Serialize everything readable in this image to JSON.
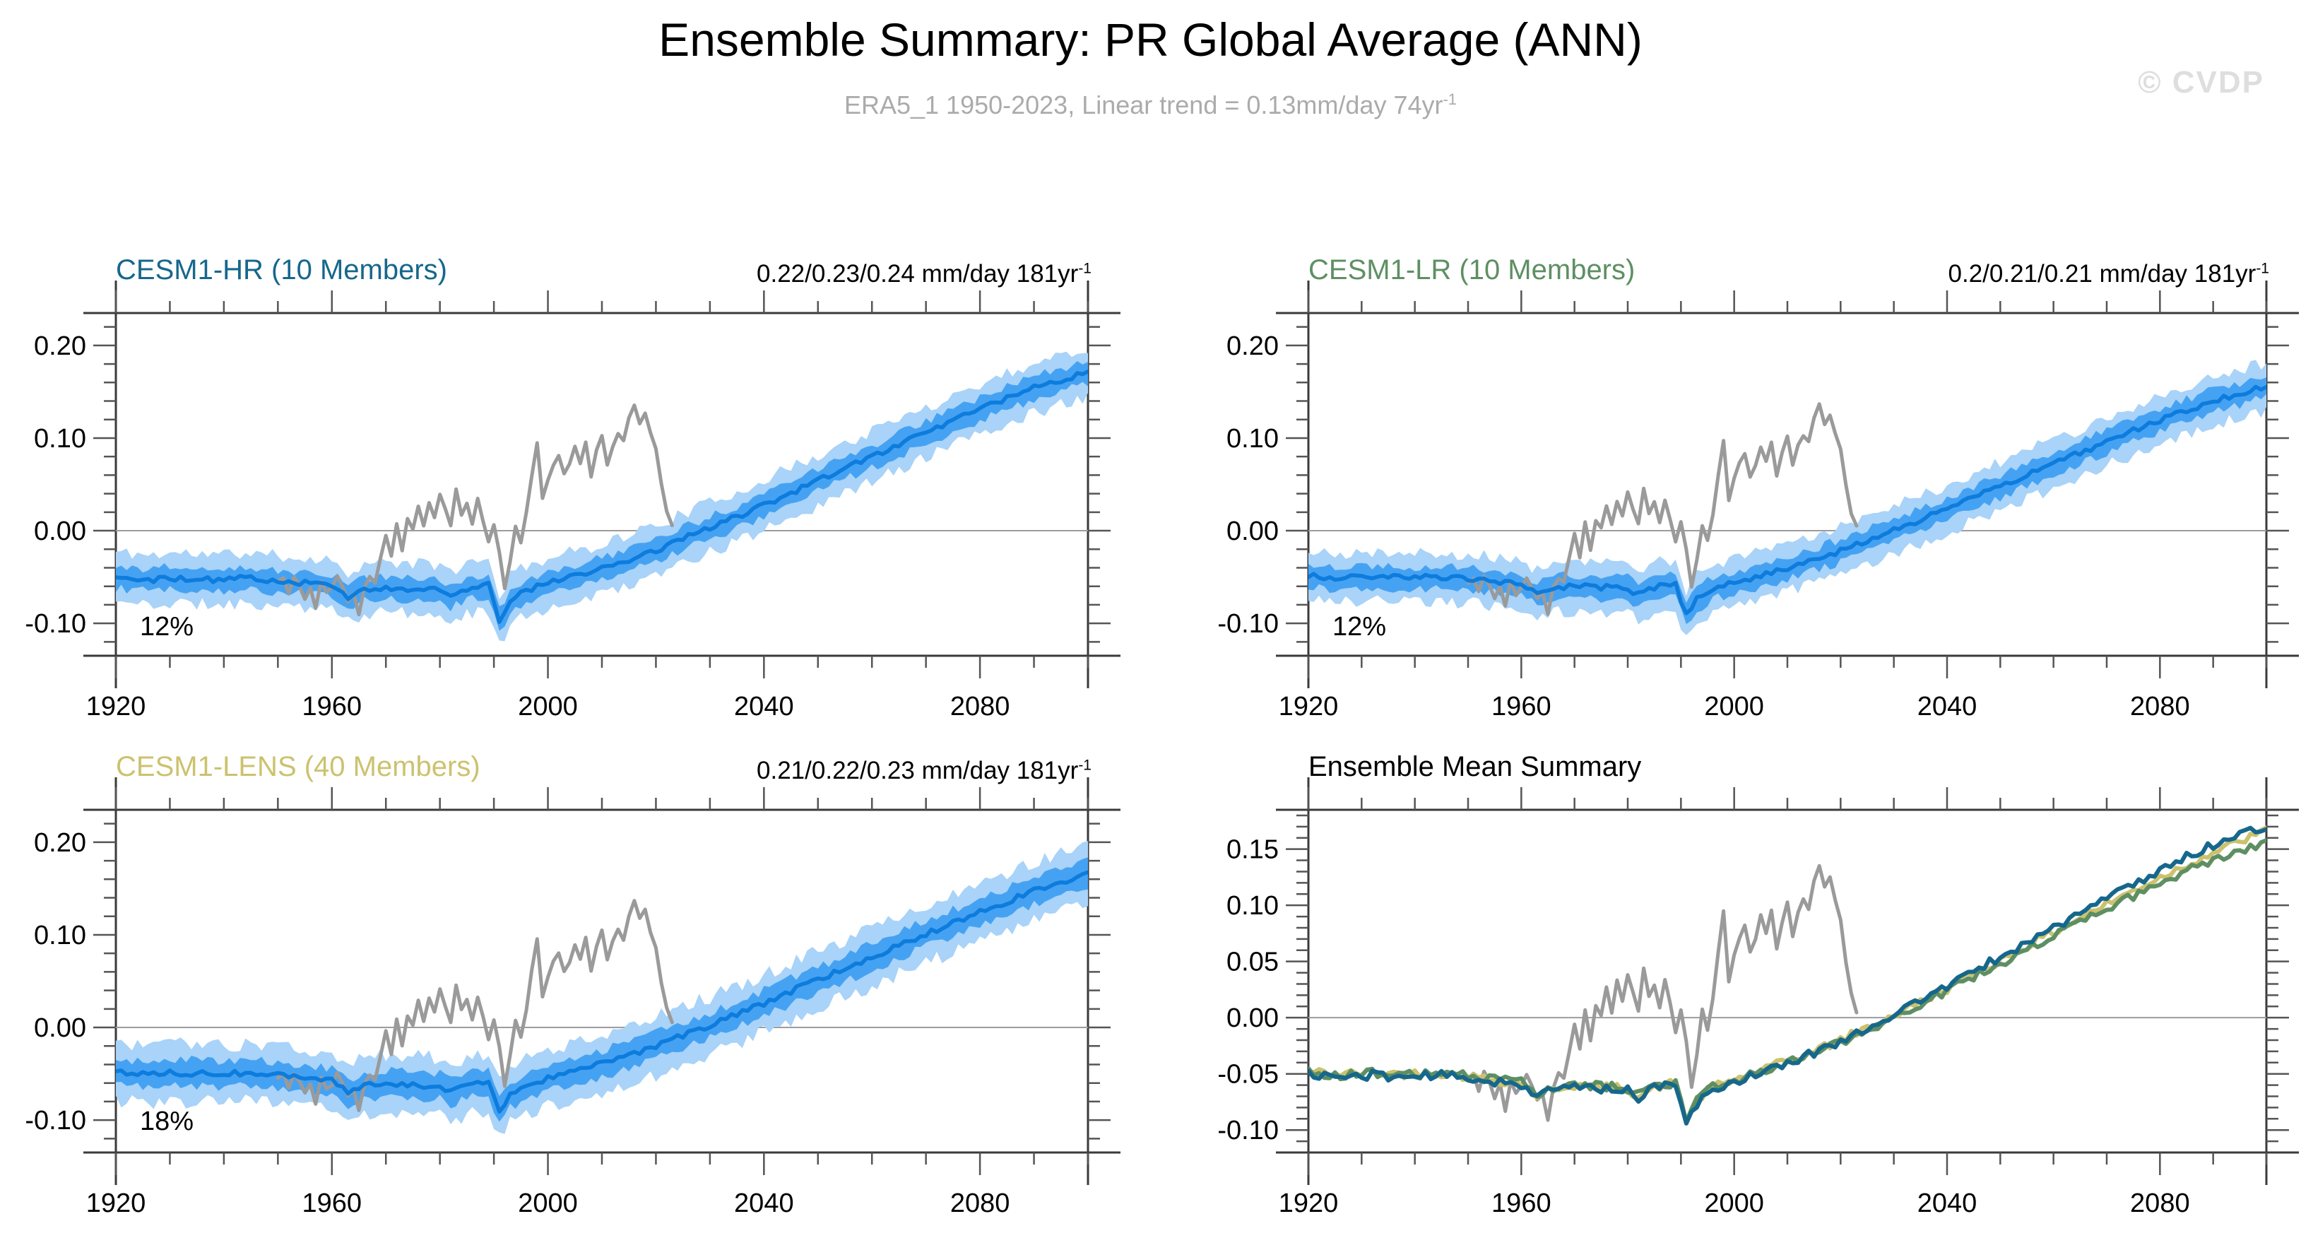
{
  "header": {
    "title": "Ensemble Summary: PR Global Average (ANN)",
    "subtitle": {
      "text": "ERA5_1 1950-2023, Linear trend = 0.13mm/day 74yr",
      "sup": "-1"
    },
    "watermark": "© CVDP"
  },
  "colors": {
    "ensemble_mean_blue": "#0d7cdc",
    "ensemble_inner_band": "#45a2f3",
    "ensemble_outer_band": "#a9d3f8",
    "observations_gray": "#9a9a9a",
    "cesm1_hr_teal": "#16678c",
    "cesm1_lr_green": "#5e8f63",
    "cesm1_lens_khaki": "#ccc26e",
    "axis_frame": "#3a3a3a",
    "tick": "#555555",
    "gridline": "#9c9c9c"
  },
  "series_anchors": {
    "hr_mean": [
      [
        1920,
        -0.05
      ],
      [
        1926,
        -0.053
      ],
      [
        1932,
        -0.051
      ],
      [
        1938,
        -0.053
      ],
      [
        1944,
        -0.051
      ],
      [
        1950,
        -0.054
      ],
      [
        1956,
        -0.057
      ],
      [
        1960,
        -0.059
      ],
      [
        1963,
        -0.071
      ],
      [
        1966,
        -0.064
      ],
      [
        1970,
        -0.061
      ],
      [
        1975,
        -0.063
      ],
      [
        1980,
        -0.064
      ],
      [
        1982,
        -0.071
      ],
      [
        1986,
        -0.061
      ],
      [
        1989,
        -0.059
      ],
      [
        1991,
        -0.096
      ],
      [
        1993,
        -0.077
      ],
      [
        1996,
        -0.064
      ],
      [
        2000,
        -0.057
      ],
      [
        2005,
        -0.049
      ],
      [
        2010,
        -0.041
      ],
      [
        2015,
        -0.031
      ],
      [
        2020,
        -0.021
      ],
      [
        2025,
        -0.009
      ],
      [
        2030,
        0.003
      ],
      [
        2035,
        0.015
      ],
      [
        2040,
        0.028
      ],
      [
        2045,
        0.041
      ],
      [
        2050,
        0.054
      ],
      [
        2055,
        0.067
      ],
      [
        2060,
        0.08
      ],
      [
        2065,
        0.093
      ],
      [
        2070,
        0.106
      ],
      [
        2075,
        0.119
      ],
      [
        2080,
        0.131
      ],
      [
        2085,
        0.143
      ],
      [
        2090,
        0.154
      ],
      [
        2095,
        0.163
      ],
      [
        2100,
        0.171
      ]
    ],
    "lr_mean": [
      [
        1920,
        -0.049
      ],
      [
        1926,
        -0.051
      ],
      [
        1932,
        -0.049
      ],
      [
        1938,
        -0.051
      ],
      [
        1944,
        -0.05
      ],
      [
        1950,
        -0.052
      ],
      [
        1956,
        -0.055
      ],
      [
        1960,
        -0.058
      ],
      [
        1963,
        -0.069
      ],
      [
        1966,
        -0.062
      ],
      [
        1970,
        -0.06
      ],
      [
        1975,
        -0.061
      ],
      [
        1980,
        -0.063
      ],
      [
        1982,
        -0.069
      ],
      [
        1986,
        -0.06
      ],
      [
        1989,
        -0.058
      ],
      [
        1991,
        -0.092
      ],
      [
        1993,
        -0.074
      ],
      [
        1996,
        -0.062
      ],
      [
        2000,
        -0.056
      ],
      [
        2005,
        -0.048
      ],
      [
        2010,
        -0.04
      ],
      [
        2015,
        -0.031
      ],
      [
        2020,
        -0.022
      ],
      [
        2025,
        -0.011
      ],
      [
        2030,
        0.001
      ],
      [
        2035,
        0.012
      ],
      [
        2040,
        0.024
      ],
      [
        2045,
        0.036
      ],
      [
        2050,
        0.048
      ],
      [
        2055,
        0.06
      ],
      [
        2060,
        0.072
      ],
      [
        2065,
        0.084
      ],
      [
        2070,
        0.096
      ],
      [
        2075,
        0.108
      ],
      [
        2080,
        0.119
      ],
      [
        2085,
        0.13
      ],
      [
        2090,
        0.14
      ],
      [
        2095,
        0.148
      ],
      [
        2100,
        0.156
      ]
    ],
    "lens_mean": [
      [
        1920,
        -0.048
      ],
      [
        1926,
        -0.05
      ],
      [
        1932,
        -0.049
      ],
      [
        1938,
        -0.05
      ],
      [
        1944,
        -0.049
      ],
      [
        1950,
        -0.052
      ],
      [
        1956,
        -0.056
      ],
      [
        1960,
        -0.058
      ],
      [
        1963,
        -0.07
      ],
      [
        1966,
        -0.063
      ],
      [
        1970,
        -0.06
      ],
      [
        1975,
        -0.062
      ],
      [
        1980,
        -0.063
      ],
      [
        1982,
        -0.07
      ],
      [
        1986,
        -0.061
      ],
      [
        1989,
        -0.058
      ],
      [
        1991,
        -0.09
      ],
      [
        1993,
        -0.073
      ],
      [
        1996,
        -0.062
      ],
      [
        2000,
        -0.055
      ],
      [
        2005,
        -0.047
      ],
      [
        2010,
        -0.039
      ],
      [
        2015,
        -0.03
      ],
      [
        2020,
        -0.02
      ],
      [
        2025,
        -0.009
      ],
      [
        2030,
        0.002
      ],
      [
        2035,
        0.014
      ],
      [
        2040,
        0.026
      ],
      [
        2045,
        0.039
      ],
      [
        2050,
        0.051
      ],
      [
        2055,
        0.064
      ],
      [
        2060,
        0.076
      ],
      [
        2065,
        0.089
      ],
      [
        2070,
        0.101
      ],
      [
        2075,
        0.113
      ],
      [
        2080,
        0.125
      ],
      [
        2085,
        0.136
      ],
      [
        2090,
        0.147
      ],
      [
        2095,
        0.157
      ],
      [
        2100,
        0.166
      ]
    ],
    "obs": [
      [
        1950,
        -0.055
      ],
      [
        1951,
        -0.05
      ],
      [
        1952,
        -0.066
      ],
      [
        1953,
        -0.048
      ],
      [
        1954,
        -0.058
      ],
      [
        1955,
        -0.072
      ],
      [
        1956,
        -0.06
      ],
      [
        1957,
        -0.083
      ],
      [
        1958,
        -0.055
      ],
      [
        1959,
        -0.068
      ],
      [
        1960,
        -0.062
      ],
      [
        1961,
        -0.05
      ],
      [
        1962,
        -0.06
      ],
      [
        1963,
        -0.075
      ],
      [
        1964,
        -0.068
      ],
      [
        1965,
        -0.09
      ],
      [
        1966,
        -0.062
      ],
      [
        1967,
        -0.05
      ],
      [
        1968,
        -0.055
      ],
      [
        1969,
        -0.03
      ],
      [
        1970,
        -0.005
      ],
      [
        1971,
        -0.028
      ],
      [
        1972,
        0.008
      ],
      [
        1973,
        -0.02
      ],
      [
        1974,
        0.012
      ],
      [
        1975,
        0.002
      ],
      [
        1976,
        0.028
      ],
      [
        1977,
        0.006
      ],
      [
        1978,
        0.032
      ],
      [
        1979,
        0.016
      ],
      [
        1980,
        0.04
      ],
      [
        1981,
        0.022
      ],
      [
        1982,
        0.006
      ],
      [
        1983,
        0.044
      ],
      [
        1984,
        0.018
      ],
      [
        1985,
        0.03
      ],
      [
        1986,
        0.008
      ],
      [
        1987,
        0.034
      ],
      [
        1988,
        0.012
      ],
      [
        1989,
        -0.012
      ],
      [
        1990,
        0.008
      ],
      [
        1991,
        -0.022
      ],
      [
        1992,
        -0.062
      ],
      [
        1993,
        -0.032
      ],
      [
        1994,
        0.006
      ],
      [
        1995,
        -0.012
      ],
      [
        1996,
        0.018
      ],
      [
        1997,
        0.06
      ],
      [
        1998,
        0.096
      ],
      [
        1999,
        0.034
      ],
      [
        2000,
        0.056
      ],
      [
        2001,
        0.072
      ],
      [
        2002,
        0.082
      ],
      [
        2003,
        0.06
      ],
      [
        2004,
        0.07
      ],
      [
        2005,
        0.09
      ],
      [
        2006,
        0.074
      ],
      [
        2007,
        0.096
      ],
      [
        2008,
        0.06
      ],
      [
        2009,
        0.086
      ],
      [
        2010,
        0.104
      ],
      [
        2011,
        0.072
      ],
      [
        2012,
        0.092
      ],
      [
        2013,
        0.104
      ],
      [
        2014,
        0.096
      ],
      [
        2015,
        0.12
      ],
      [
        2016,
        0.136
      ],
      [
        2017,
        0.116
      ],
      [
        2018,
        0.126
      ],
      [
        2019,
        0.104
      ],
      [
        2020,
        0.088
      ],
      [
        2021,
        0.05
      ],
      [
        2022,
        0.02
      ],
      [
        2023,
        0.004
      ]
    ]
  },
  "chart_data": [
    {
      "type": "line",
      "panel": "cesm1-hr",
      "title": "CESM1-HR (10 Members)",
      "title_color": "#16678c",
      "trend": {
        "text": "0.22/0.23/0.24 mm/day 181yr",
        "sup": "-1"
      },
      "annotation": "12%",
      "x": {
        "range": [
          1920,
          2100
        ],
        "major": [
          1920,
          1960,
          2000,
          2040,
          2080
        ],
        "labels": [
          "1920",
          "1960",
          "2000",
          "2040",
          "2080"
        ],
        "minor_step": 10
      },
      "y": {
        "range": [
          -0.135,
          0.235
        ],
        "major": [
          0.2,
          0.1,
          0.0,
          -0.1
        ],
        "labels": [
          "0.20",
          "0.10",
          "0.00",
          "-0.10"
        ],
        "minor_step": 0.02,
        "grid_at": 0
      },
      "series": [
        {
          "name": "ensemble-outer-range",
          "kind": "band",
          "color": "#a9d3f8",
          "anchors_ref": "hr_mean",
          "half_width": 0.027,
          "noise": 0.007,
          "seed": 11
        },
        {
          "name": "ensemble-inner-range",
          "kind": "band",
          "color": "#45a2f3",
          "anchors_ref": "hr_mean",
          "half_width": 0.012,
          "noise": 0.005,
          "seed": 12
        },
        {
          "name": "observations",
          "kind": "line",
          "color": "#9a9a9a",
          "anchors_ref": "obs",
          "width": 5,
          "noise": 0.002,
          "seed": 13
        },
        {
          "name": "ensemble-mean",
          "kind": "line",
          "color": "#0d7cdc",
          "anchors_ref": "hr_mean",
          "width": 5.5,
          "noise": 0.003,
          "seed": 14
        }
      ]
    },
    {
      "type": "line",
      "panel": "cesm1-lr",
      "title": "CESM1-LR (10 Members)",
      "title_color": "#5e8f63",
      "trend": {
        "text": "0.2/0.21/0.21 mm/day 181yr",
        "sup": "-1"
      },
      "annotation": "12%",
      "x": {
        "range": [
          1920,
          2100
        ],
        "major": [
          1920,
          1960,
          2000,
          2040,
          2080
        ],
        "labels": [
          "1920",
          "1960",
          "2000",
          "2040",
          "2080"
        ],
        "minor_step": 10
      },
      "y": {
        "range": [
          -0.135,
          0.235
        ],
        "major": [
          0.2,
          0.1,
          0.0,
          -0.1
        ],
        "labels": [
          "0.20",
          "0.10",
          "0.00",
          "-0.10"
        ],
        "minor_step": 0.02,
        "grid_at": 0
      },
      "series": [
        {
          "name": "ensemble-outer-range",
          "kind": "band",
          "color": "#a9d3f8",
          "anchors_ref": "lr_mean",
          "half_width": 0.026,
          "noise": 0.007,
          "seed": 21
        },
        {
          "name": "ensemble-inner-range",
          "kind": "band",
          "color": "#45a2f3",
          "anchors_ref": "lr_mean",
          "half_width": 0.012,
          "noise": 0.005,
          "seed": 22
        },
        {
          "name": "observations",
          "kind": "line",
          "color": "#9a9a9a",
          "anchors_ref": "obs",
          "width": 5,
          "noise": 0.002,
          "seed": 23
        },
        {
          "name": "ensemble-mean",
          "kind": "line",
          "color": "#0d7cdc",
          "anchors_ref": "lr_mean",
          "width": 5.5,
          "noise": 0.003,
          "seed": 24
        }
      ]
    },
    {
      "type": "line",
      "panel": "cesm1-lens",
      "title": "CESM1-LENS (40 Members)",
      "title_color": "#ccc26e",
      "trend": {
        "text": "0.21/0.22/0.23 mm/day 181yr",
        "sup": "-1"
      },
      "annotation": "18%",
      "x": {
        "range": [
          1920,
          2100
        ],
        "major": [
          1920,
          1960,
          2000,
          2040,
          2080
        ],
        "labels": [
          "1920",
          "1960",
          "2000",
          "2040",
          "2080"
        ],
        "minor_step": 10
      },
      "y": {
        "range": [
          -0.135,
          0.235
        ],
        "major": [
          0.2,
          0.1,
          0.0,
          -0.1
        ],
        "labels": [
          "0.20",
          "0.10",
          "0.00",
          "-0.10"
        ],
        "minor_step": 0.02,
        "grid_at": 0
      },
      "series": [
        {
          "name": "ensemble-outer-range",
          "kind": "band",
          "color": "#a9d3f8",
          "anchors_ref": "lens_mean",
          "half_width": 0.031,
          "noise": 0.008,
          "seed": 31
        },
        {
          "name": "ensemble-inner-range",
          "kind": "band",
          "color": "#45a2f3",
          "anchors_ref": "lens_mean",
          "half_width": 0.014,
          "noise": 0.005,
          "seed": 32
        },
        {
          "name": "observations",
          "kind": "line",
          "color": "#9a9a9a",
          "anchors_ref": "obs",
          "width": 5,
          "noise": 0.002,
          "seed": 33
        },
        {
          "name": "ensemble-mean",
          "kind": "line",
          "color": "#0d7cdc",
          "anchors_ref": "lens_mean",
          "width": 5.5,
          "noise": 0.003,
          "seed": 34
        }
      ]
    },
    {
      "type": "line",
      "panel": "ensemble-mean-summary",
      "title": "Ensemble Mean Summary",
      "title_color": "#000000",
      "x": {
        "range": [
          1920,
          2100
        ],
        "major": [
          1920,
          1960,
          2000,
          2040,
          2080
        ],
        "labels": [
          "1920",
          "1960",
          "2000",
          "2040",
          "2080"
        ],
        "minor_step": 10
      },
      "y": {
        "range": [
          -0.12,
          0.185
        ],
        "major": [
          0.15,
          0.1,
          0.05,
          0.0,
          -0.05,
          -0.1
        ],
        "labels": [
          "0.15",
          "0.10",
          "0.05",
          "0.00",
          "-0.05",
          "-0.10"
        ],
        "minor_step": 0.01,
        "grid_at": 0
      },
      "series": [
        {
          "name": "observations",
          "kind": "line",
          "color": "#9a9a9a",
          "anchors_ref": "obs",
          "width": 5,
          "noise": 0.002,
          "seed": 41
        },
        {
          "name": "cesm1-lens-mean",
          "kind": "line",
          "color": "#ccc26e",
          "anchors_ref": "lens_mean",
          "width": 6,
          "noise": 0.004,
          "seed": 42
        },
        {
          "name": "cesm1-lr-mean",
          "kind": "line",
          "color": "#5e8f63",
          "anchors_ref": "lr_mean",
          "width": 6,
          "noise": 0.004,
          "seed": 43
        },
        {
          "name": "cesm1-hr-mean",
          "kind": "line",
          "color": "#16678c",
          "anchors_ref": "hr_mean",
          "width": 6,
          "noise": 0.004,
          "seed": 44
        }
      ]
    }
  ]
}
